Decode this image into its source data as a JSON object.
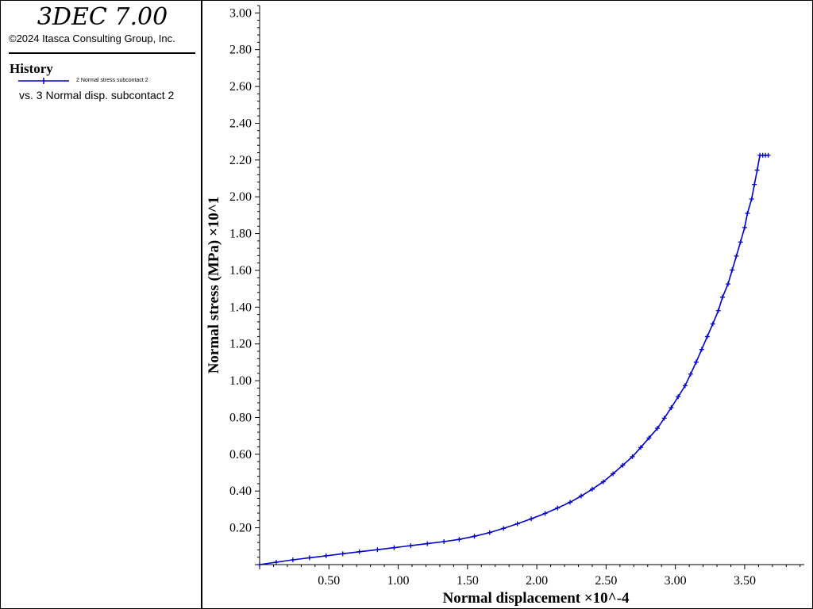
{
  "header": {
    "app_title": "3DEC 7.00",
    "copyright": "©2024 Itasca Consulting Group, Inc."
  },
  "sidebar": {
    "section_title": "History",
    "legend_label": "2 Normal stress subcontact 2",
    "vs_label": "vs. 3 Normal disp. subcontact 2",
    "legend_color": "#0000cc"
  },
  "chart_data": {
    "type": "line",
    "xlabel": "Normal displacement ×10^-4",
    "ylabel": "Normal stress (MPa) ×10^1",
    "xlim": [
      0,
      3.93
    ],
    "ylim": [
      0,
      3.04
    ],
    "xticks": [
      "0.50",
      "1.00",
      "1.50",
      "2.00",
      "2.50",
      "3.00",
      "3.50"
    ],
    "yticks": [
      "0.20",
      "0.40",
      "0.60",
      "0.80",
      "1.00",
      "1.20",
      "1.40",
      "1.60",
      "1.80",
      "2.00",
      "2.20",
      "2.40",
      "2.60",
      "2.80",
      "3.00"
    ],
    "grid": false,
    "series": [
      {
        "name": "2 Normal stress subcontact 2",
        "color": "#0000cc",
        "x": [
          0.0,
          0.12,
          0.24,
          0.36,
          0.48,
          0.6,
          0.72,
          0.85,
          0.97,
          1.09,
          1.21,
          1.33,
          1.44,
          1.55,
          1.66,
          1.76,
          1.86,
          1.96,
          2.06,
          2.15,
          2.24,
          2.32,
          2.4,
          2.48,
          2.55,
          2.62,
          2.69,
          2.75,
          2.81,
          2.87,
          2.92,
          2.97,
          3.02,
          3.07,
          3.11,
          3.15,
          3.19,
          3.23,
          3.27,
          3.31,
          3.34,
          3.38,
          3.41,
          3.44,
          3.47,
          3.5,
          3.52,
          3.55,
          3.57,
          3.59,
          3.61,
          3.63,
          3.65,
          3.67
        ],
        "y": [
          0.0,
          0.013,
          0.026,
          0.037,
          0.048,
          0.059,
          0.07,
          0.081,
          0.092,
          0.103,
          0.114,
          0.125,
          0.137,
          0.154,
          0.174,
          0.197,
          0.222,
          0.249,
          0.278,
          0.308,
          0.339,
          0.373,
          0.41,
          0.45,
          0.494,
          0.54,
          0.587,
          0.637,
          0.689,
          0.741,
          0.796,
          0.853,
          0.913,
          0.973,
          1.036,
          1.101,
          1.17,
          1.24,
          1.309,
          1.381,
          1.454,
          1.526,
          1.602,
          1.678,
          1.754,
          1.833,
          1.91,
          1.988,
          2.067,
          2.145,
          2.226,
          2.226,
          2.226,
          2.226
        ]
      }
    ]
  }
}
